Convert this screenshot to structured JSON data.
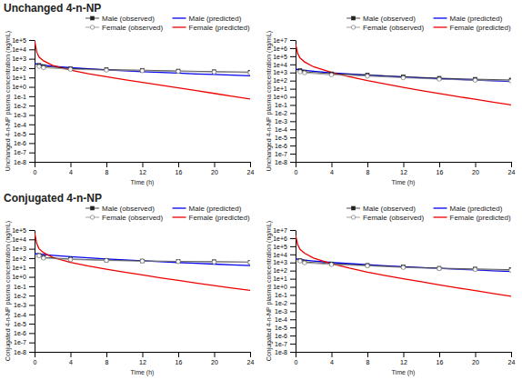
{
  "chart_data": [
    {
      "type": "line",
      "title": "Unchanged 4-n-NP",
      "x_label": "Time (h)",
      "y_label": "Unchanged 4-n-NP plasma concentration (ng/mL)",
      "log": "y",
      "grid": false,
      "legend": "upper right",
      "xlim": [
        0,
        24
      ],
      "xticks": [
        0,
        4,
        8,
        12,
        16,
        20,
        24
      ],
      "ylim": [
        1e-08,
        100000
      ],
      "yticks": [
        {
          "value": 1e-08,
          "label": "1e-8"
        },
        {
          "value": 1e-07,
          "label": "1e-7"
        },
        {
          "value": 1e-06,
          "label": "1e-6"
        },
        {
          "value": 1e-05,
          "label": "1e-5"
        },
        {
          "value": 0.0001,
          "label": "1e-4"
        },
        {
          "value": 0.001,
          "label": "1e-3"
        },
        {
          "value": 0.01,
          "label": "1e-2"
        },
        {
          "value": 0.1,
          "label": "1e-1"
        },
        {
          "value": 1,
          "label": "1e+0"
        },
        {
          "value": 10,
          "label": "1e+1"
        },
        {
          "value": 100,
          "label": "1e+2"
        },
        {
          "value": 1000,
          "label": "1e+3"
        },
        {
          "value": 10000,
          "label": "1e+4"
        },
        {
          "value": 100000,
          "label": "1e+5"
        }
      ],
      "series": [
        {
          "name": "Male (observed)",
          "color": "#222222",
          "marker": "square",
          "line_style": "solid",
          "x": [
            0.5,
            1,
            4,
            8,
            12,
            16,
            20,
            24
          ],
          "values": [
            200,
            150,
            90,
            70,
            60,
            50,
            42,
            38
          ],
          "errors": [
            30,
            20,
            15,
            12,
            10,
            8,
            7,
            6
          ]
        },
        {
          "name": "Female (observed)",
          "color": "#888888",
          "marker": "circle-open",
          "line_style": "solid",
          "x": [
            0.5,
            1,
            4,
            8,
            12,
            16,
            20,
            24
          ],
          "values": [
            150,
            110,
            75,
            60,
            52,
            44,
            38,
            32
          ],
          "errors": [
            25,
            18,
            12,
            10,
            8,
            7,
            6,
            5
          ]
        },
        {
          "name": "Male (predicted)",
          "color": "#0000ee",
          "marker": "none",
          "line_style": "solid",
          "x": [
            0.01,
            0.25,
            0.5,
            1,
            2,
            4,
            6,
            8,
            10,
            12,
            14,
            16,
            18,
            20,
            22,
            24
          ],
          "values": [
            300,
            280,
            250,
            210,
            160,
            110,
            85,
            65,
            52,
            42,
            35,
            29,
            24,
            21,
            18,
            15
          ]
        },
        {
          "name": "Female (predicted)",
          "color": "#ee0000",
          "marker": "none",
          "line_style": "solid",
          "x": [
            0.01,
            0.25,
            0.5,
            1,
            2,
            4,
            6,
            8,
            10,
            12,
            14,
            16,
            18,
            20,
            22,
            24
          ],
          "values": [
            80000,
            5000,
            1500,
            600,
            200,
            60,
            25,
            12,
            6,
            3,
            1.5,
            0.8,
            0.4,
            0.2,
            0.1,
            0.05
          ]
        }
      ]
    },
    {
      "type": "line",
      "x_label": "Time (h)",
      "y_label": "Unchanged 4-n-NP plasma concentration (ng/mL)",
      "log": "y",
      "grid": false,
      "legend": "upper right",
      "xlim": [
        0,
        24
      ],
      "xticks": [
        0,
        4,
        8,
        12,
        16,
        20,
        24
      ],
      "ylim": [
        1e-08,
        10000000
      ],
      "yticks": [
        {
          "value": 1e-08,
          "label": "1e-8"
        },
        {
          "value": 1e-07,
          "label": "1e-7"
        },
        {
          "value": 1e-06,
          "label": "1e-6"
        },
        {
          "value": 1e-05,
          "label": "1e-5"
        },
        {
          "value": 0.0001,
          "label": "1e-4"
        },
        {
          "value": 0.001,
          "label": "1e-3"
        },
        {
          "value": 0.01,
          "label": "1e-2"
        },
        {
          "value": 0.1,
          "label": "1e-1"
        },
        {
          "value": 1,
          "label": "1e+0"
        },
        {
          "value": 10,
          "label": "1e+1"
        },
        {
          "value": 100,
          "label": "1e+2"
        },
        {
          "value": 1000,
          "label": "1e+3"
        },
        {
          "value": 10000,
          "label": "1e+4"
        },
        {
          "value": 100000,
          "label": "1e+5"
        },
        {
          "value": 1000000,
          "label": "1e+6"
        },
        {
          "value": 10000000,
          "label": "1e+7"
        }
      ],
      "series": [
        {
          "name": "Male (observed)",
          "color": "#222222",
          "marker": "square",
          "line_style": "solid",
          "x": [
            0.5,
            1,
            4,
            8,
            12,
            16,
            20,
            24
          ],
          "values": [
            1800,
            1200,
            700,
            500,
            300,
            200,
            150,
            120
          ],
          "errors": [
            300,
            200,
            120,
            90,
            60,
            40,
            30,
            25
          ]
        },
        {
          "name": "Female (observed)",
          "color": "#888888",
          "marker": "circle-open",
          "line_style": "solid",
          "x": [
            0.5,
            1,
            4,
            8,
            12,
            16,
            20,
            24
          ],
          "values": [
            1200,
            900,
            500,
            350,
            220,
            150,
            110,
            90
          ],
          "errors": [
            200,
            150,
            90,
            70,
            45,
            30,
            25,
            20
          ]
        },
        {
          "name": "Male (predicted)",
          "color": "#0000ee",
          "marker": "none",
          "line_style": "solid",
          "x": [
            0.01,
            0.25,
            0.5,
            1,
            2,
            4,
            6,
            8,
            10,
            12,
            14,
            16,
            18,
            20,
            22,
            24
          ],
          "values": [
            2500,
            2300,
            2100,
            1800,
            1400,
            900,
            650,
            480,
            360,
            280,
            220,
            175,
            140,
            115,
            95,
            80
          ]
        },
        {
          "name": "Female (predicted)",
          "color": "#ee0000",
          "marker": "none",
          "line_style": "solid",
          "x": [
            0.01,
            0.25,
            0.5,
            1,
            2,
            4,
            6,
            8,
            10,
            12,
            14,
            16,
            18,
            20,
            22,
            24
          ],
          "values": [
            3000000,
            200000,
            60000,
            20000,
            5000,
            1000,
            300,
            100,
            38,
            15,
            6,
            2.5,
            1.1,
            0.5,
            0.22,
            0.1
          ]
        }
      ]
    },
    {
      "type": "line",
      "title": "Conjugated 4-n-NP",
      "x_label": "Time (h)",
      "y_label": "Conjugated 4-n-NP plasma concentration (ng/mL)",
      "log": "y",
      "grid": false,
      "legend": "upper right",
      "xlim": [
        0,
        24
      ],
      "xticks": [
        0,
        4,
        8,
        12,
        16,
        20,
        24
      ],
      "ylim": [
        1e-08,
        100000
      ],
      "yticks": [
        {
          "value": 1e-08,
          "label": "1e-8"
        },
        {
          "value": 1e-07,
          "label": "1e-7"
        },
        {
          "value": 1e-06,
          "label": "1e-6"
        },
        {
          "value": 1e-05,
          "label": "1e-5"
        },
        {
          "value": 0.0001,
          "label": "1e-4"
        },
        {
          "value": 0.001,
          "label": "1e-3"
        },
        {
          "value": 0.01,
          "label": "1e-2"
        },
        {
          "value": 0.1,
          "label": "1e-1"
        },
        {
          "value": 1,
          "label": "1e+0"
        },
        {
          "value": 10,
          "label": "1e+1"
        },
        {
          "value": 100,
          "label": "1e+2"
        },
        {
          "value": 1000,
          "label": "1e+3"
        },
        {
          "value": 10000,
          "label": "1e+4"
        },
        {
          "value": 100000,
          "label": "1e+5"
        }
      ],
      "series": [
        {
          "name": "Male (observed)",
          "color": "#222222",
          "marker": "square",
          "line_style": "solid",
          "x": [
            0.5,
            1,
            4,
            8,
            12,
            16,
            20,
            24
          ],
          "values": [
            200,
            120,
            80,
            60,
            50,
            45,
            42,
            38
          ],
          "errors": [
            40,
            20,
            15,
            12,
            10,
            9,
            8,
            7
          ]
        },
        {
          "name": "Female (observed)",
          "color": "#888888",
          "marker": "circle-open",
          "line_style": "solid",
          "x": [
            0.5,
            1,
            4,
            8,
            12,
            16,
            20,
            24
          ],
          "values": [
            180,
            100,
            70,
            55,
            48,
            42,
            38,
            35
          ],
          "errors": [
            35,
            18,
            14,
            11,
            9,
            8,
            7,
            6
          ]
        },
        {
          "name": "Male (predicted)",
          "color": "#0000ee",
          "marker": "none",
          "line_style": "solid",
          "x": [
            0.01,
            0.25,
            0.5,
            1,
            2,
            4,
            6,
            8,
            10,
            12,
            14,
            16,
            18,
            20,
            22,
            24
          ],
          "values": [
            300,
            290,
            270,
            240,
            195,
            140,
            105,
            82,
            65,
            52,
            42,
            34,
            28,
            23,
            19,
            16
          ]
        },
        {
          "name": "Female (predicted)",
          "color": "#ee0000",
          "marker": "none",
          "line_style": "solid",
          "x": [
            0.01,
            0.25,
            0.5,
            1,
            2,
            4,
            6,
            8,
            10,
            12,
            14,
            16,
            18,
            20,
            22,
            24
          ],
          "values": [
            50000,
            3500,
            1000,
            380,
            120,
            35,
            14,
            6.5,
            3.2,
            1.6,
            0.8,
            0.42,
            0.22,
            0.12,
            0.065,
            0.036
          ]
        }
      ]
    },
    {
      "type": "line",
      "x_label": "Time (h)",
      "y_label": "Conjugated 4-n-NP plasma concentration (ng/mL)",
      "log": "y",
      "grid": false,
      "legend": "upper right",
      "xlim": [
        0,
        24
      ],
      "xticks": [
        0,
        4,
        8,
        12,
        16,
        20,
        24
      ],
      "ylim": [
        1e-08,
        10000000
      ],
      "yticks": [
        {
          "value": 1e-08,
          "label": "1e-8"
        },
        {
          "value": 1e-07,
          "label": "1e-7"
        },
        {
          "value": 1e-06,
          "label": "1e-6"
        },
        {
          "value": 1e-05,
          "label": "1e-5"
        },
        {
          "value": 0.0001,
          "label": "1e-4"
        },
        {
          "value": 0.001,
          "label": "1e-3"
        },
        {
          "value": 0.01,
          "label": "1e-2"
        },
        {
          "value": 0.1,
          "label": "1e-1"
        },
        {
          "value": 1,
          "label": "1e+0"
        },
        {
          "value": 10,
          "label": "1e+1"
        },
        {
          "value": 100,
          "label": "1e+2"
        },
        {
          "value": 1000,
          "label": "1e+3"
        },
        {
          "value": 10000,
          "label": "1e+4"
        },
        {
          "value": 100000,
          "label": "1e+5"
        },
        {
          "value": 1000000,
          "label": "1e+6"
        },
        {
          "value": 10000000,
          "label": "1e+7"
        }
      ],
      "series": [
        {
          "name": "Male (observed)",
          "color": "#222222",
          "marker": "square",
          "line_style": "solid",
          "x": [
            0.5,
            1,
            4,
            8,
            12,
            16,
            20,
            24
          ],
          "values": [
            1800,
            1200,
            700,
            450,
            280,
            200,
            160,
            130
          ],
          "errors": [
            350,
            220,
            130,
            90,
            60,
            45,
            35,
            28
          ]
        },
        {
          "name": "Female (observed)",
          "color": "#888888",
          "marker": "circle-open",
          "line_style": "solid",
          "x": [
            0.5,
            1,
            4,
            8,
            12,
            16,
            20,
            24
          ],
          "values": [
            1500,
            900,
            550,
            380,
            240,
            175,
            135,
            110
          ],
          "errors": [
            280,
            180,
            110,
            80,
            55,
            40,
            30,
            25
          ]
        },
        {
          "name": "Male (predicted)",
          "color": "#0000ee",
          "marker": "none",
          "line_style": "solid",
          "x": [
            0.01,
            0.25,
            0.5,
            1,
            2,
            4,
            6,
            8,
            10,
            12,
            14,
            16,
            18,
            20,
            22,
            24
          ],
          "values": [
            2800,
            2600,
            2400,
            2000,
            1550,
            1000,
            720,
            530,
            400,
            305,
            238,
            188,
            150,
            120,
            97,
            79
          ]
        },
        {
          "name": "Female (predicted)",
          "color": "#ee0000",
          "marker": "none",
          "line_style": "solid",
          "x": [
            0.01,
            0.25,
            0.5,
            1,
            2,
            4,
            6,
            8,
            10,
            12,
            14,
            16,
            18,
            20,
            22,
            24
          ],
          "values": [
            2000000,
            150000,
            42000,
            14000,
            3500,
            700,
            200,
            66,
            25,
            10,
            4.2,
            1.75,
            0.76,
            0.34,
            0.15,
            0.069
          ]
        }
      ]
    }
  ]
}
